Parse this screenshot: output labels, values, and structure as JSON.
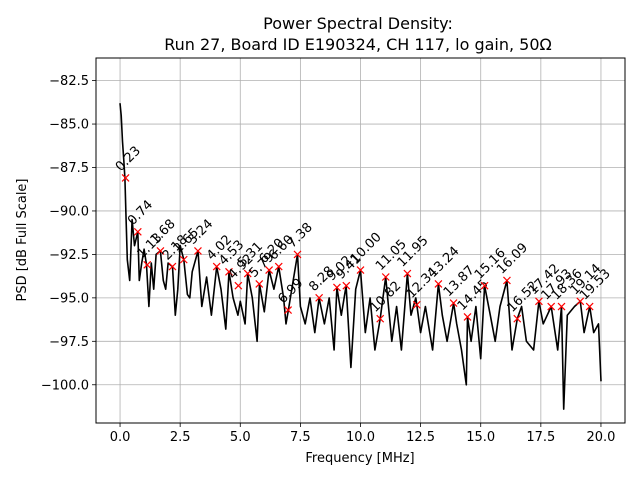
{
  "chart_data": {
    "type": "line",
    "title": "Power Spectral Density:",
    "subtitle": "Run 27, Board ID E190324, CH 117, lo gain, 50Ω",
    "xlabel": "Frequency [MHz]",
    "ylabel": "PSD [dB Full Scale]",
    "xlim": [
      -1.0,
      21.0
    ],
    "ylim": [
      -102.2,
      -81.2
    ],
    "xticks": [
      0.0,
      2.5,
      5.0,
      7.5,
      10.0,
      12.5,
      15.0,
      17.5,
      20.0
    ],
    "xtick_labels": [
      "0.0",
      "2.5",
      "5.0",
      "7.5",
      "10.0",
      "12.5",
      "15.0",
      "17.5",
      "20.0"
    ],
    "yticks": [
      -82.5,
      -85.0,
      -87.5,
      -90.0,
      -92.5,
      -95.0,
      -97.5,
      -100.0
    ],
    "ytick_labels": [
      "−82.5",
      "−85.0",
      "−87.5",
      "−90.0",
      "−92.5",
      "−95.0",
      "−97.5",
      "−100.0"
    ],
    "grid": true,
    "series": [
      {
        "name": "PSD",
        "color": "#000000",
        "x": [
          0.0,
          0.05,
          0.1,
          0.15,
          0.2,
          0.25,
          0.3,
          0.4,
          0.5,
          0.6,
          0.74,
          0.8,
          0.9,
          1.0,
          1.1,
          1.2,
          1.3,
          1.4,
          1.5,
          1.68,
          1.8,
          1.9,
          2.0,
          2.18,
          2.3,
          2.4,
          2.5,
          2.65,
          2.8,
          2.9,
          3.0,
          3.24,
          3.4,
          3.6,
          3.8,
          4.02,
          4.2,
          4.4,
          4.53,
          4.7,
          4.9,
          5.0,
          5.2,
          5.31,
          5.5,
          5.7,
          5.8,
          6.0,
          6.2,
          6.4,
          6.6,
          6.8,
          6.9,
          7.0,
          7.2,
          7.38,
          7.5,
          7.7,
          7.9,
          8.1,
          8.28,
          8.5,
          8.7,
          8.9,
          9.02,
          9.2,
          9.4,
          9.6,
          9.8,
          10.0,
          10.2,
          10.4,
          10.6,
          10.82,
          11.05,
          11.3,
          11.5,
          11.7,
          11.95,
          12.1,
          12.3,
          12.34,
          12.5,
          12.7,
          13.0,
          13.24,
          13.4,
          13.6,
          13.87,
          14.0,
          14.2,
          14.4,
          14.45,
          14.6,
          14.8,
          15.0,
          15.16,
          15.4,
          15.6,
          15.8,
          16.09,
          16.3,
          16.52,
          16.7,
          16.9,
          17.2,
          17.42,
          17.6,
          17.93,
          18.2,
          18.36,
          18.45,
          18.6,
          18.9,
          19.14,
          19.3,
          19.53,
          19.7,
          19.9,
          20.0
        ],
        "y": [
          -83.8,
          -84.5,
          -86.0,
          -87.0,
          -88.1,
          -90.5,
          -92.8,
          -94.0,
          -90.5,
          -92.0,
          -91.2,
          -94.0,
          -93.0,
          -92.2,
          -93.1,
          -95.5,
          -93.0,
          -94.5,
          -92.5,
          -92.3,
          -94.0,
          -94.5,
          -93.0,
          -93.2,
          -96.0,
          -94.5,
          -92.0,
          -92.8,
          -94.8,
          -95.0,
          -93.5,
          -92.3,
          -95.5,
          -93.8,
          -96.0,
          -93.2,
          -94.5,
          -96.8,
          -93.5,
          -95.0,
          -96.0,
          -95.2,
          -96.5,
          -93.6,
          -95.0,
          -97.5,
          -94.2,
          -95.8,
          -93.4,
          -94.5,
          -93.2,
          -95.0,
          -96.5,
          -95.7,
          -94.0,
          -92.5,
          -95.5,
          -96.5,
          -95.0,
          -97.0,
          -95.0,
          -96.5,
          -95.0,
          -98.0,
          -94.4,
          -96.0,
          -94.3,
          -99.0,
          -94.5,
          -93.4,
          -97.0,
          -95.0,
          -98.0,
          -96.2,
          -93.8,
          -97.5,
          -95.5,
          -98.0,
          -93.6,
          -96.0,
          -95.0,
          -95.4,
          -97.0,
          -95.5,
          -98.0,
          -94.2,
          -96.0,
          -97.5,
          -95.3,
          -96.5,
          -98.0,
          -100.0,
          -96.1,
          -97.5,
          -95.5,
          -98.5,
          -94.3,
          -96.0,
          -97.5,
          -95.5,
          -94.0,
          -98.0,
          -96.2,
          -95.5,
          -97.5,
          -98.0,
          -95.2,
          -96.5,
          -95.5,
          -98.0,
          -95.5,
          -101.4,
          -96.0,
          -95.5,
          -95.2,
          -97.0,
          -95.5,
          -97.0,
          -96.5,
          -99.8
        ]
      }
    ],
    "peaks": {
      "marker": "x",
      "color": "#ff0000",
      "points": [
        {
          "x": 0.23,
          "y": -88.1,
          "label": "0.23"
        },
        {
          "x": 0.74,
          "y": -91.2,
          "label": "0.74"
        },
        {
          "x": 1.13,
          "y": -93.1,
          "label": "1.13"
        },
        {
          "x": 1.68,
          "y": -92.3,
          "label": "1.68"
        },
        {
          "x": 2.18,
          "y": -93.2,
          "label": "2.18"
        },
        {
          "x": 2.65,
          "y": -92.8,
          "label": "2.65"
        },
        {
          "x": 3.24,
          "y": -92.3,
          "label": "3.24"
        },
        {
          "x": 4.02,
          "y": -93.2,
          "label": "4.02"
        },
        {
          "x": 4.53,
          "y": -93.5,
          "label": "4.53"
        },
        {
          "x": 4.92,
          "y": -94.3,
          "label": "4.92"
        },
        {
          "x": 5.31,
          "y": -93.6,
          "label": "5.31"
        },
        {
          "x": 5.79,
          "y": -94.2,
          "label": "5.79"
        },
        {
          "x": 6.2,
          "y": -93.4,
          "label": "6.20"
        },
        {
          "x": 6.6,
          "y": -93.2,
          "label": "6.60"
        },
        {
          "x": 6.99,
          "y": -95.7,
          "label": "6.99"
        },
        {
          "x": 7.38,
          "y": -92.5,
          "label": "7.38"
        },
        {
          "x": 8.28,
          "y": -95.0,
          "label": "8.28"
        },
        {
          "x": 9.02,
          "y": -94.4,
          "label": "9.02"
        },
        {
          "x": 9.41,
          "y": -94.3,
          "label": "9.41"
        },
        {
          "x": 10.0,
          "y": -93.4,
          "label": "10.00"
        },
        {
          "x": 10.82,
          "y": -96.2,
          "label": "10.82"
        },
        {
          "x": 11.05,
          "y": -93.8,
          "label": "11.05"
        },
        {
          "x": 11.95,
          "y": -93.6,
          "label": "11.95"
        },
        {
          "x": 12.34,
          "y": -95.4,
          "label": "12.34"
        },
        {
          "x": 13.24,
          "y": -94.2,
          "label": "13.24"
        },
        {
          "x": 13.87,
          "y": -95.3,
          "label": "13.87"
        },
        {
          "x": 14.45,
          "y": -96.1,
          "label": "14.45"
        },
        {
          "x": 15.16,
          "y": -94.3,
          "label": "15.16"
        },
        {
          "x": 16.09,
          "y": -94.0,
          "label": "16.09"
        },
        {
          "x": 16.52,
          "y": -96.2,
          "label": "16.52"
        },
        {
          "x": 17.42,
          "y": -95.2,
          "label": "17.42"
        },
        {
          "x": 17.93,
          "y": -95.5,
          "label": "17.93"
        },
        {
          "x": 18.36,
          "y": -95.5,
          "label": "18.36"
        },
        {
          "x": 19.14,
          "y": -95.2,
          "label": "19.14"
        },
        {
          "x": 19.53,
          "y": -95.5,
          "label": "19.53"
        }
      ]
    }
  }
}
